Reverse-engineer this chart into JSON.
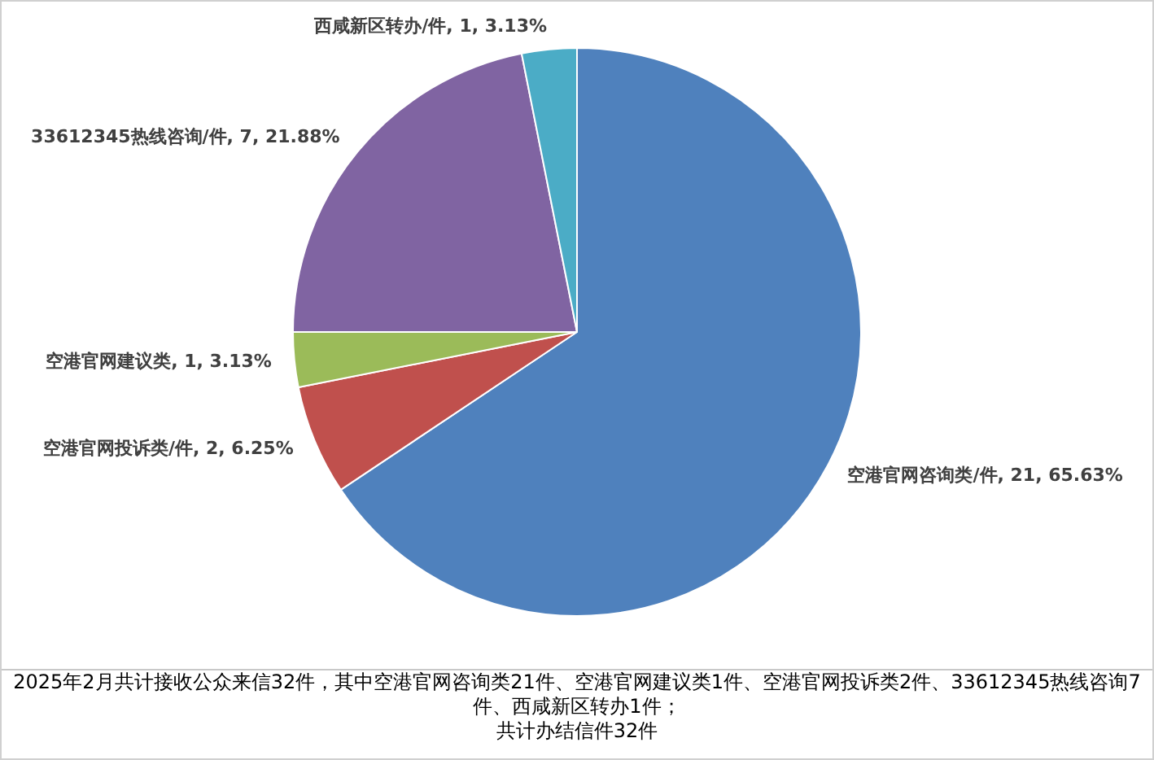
{
  "chart_data": {
    "type": "pie",
    "categories": [
      "空港官网咨询类/件",
      "空港官网投诉类/件",
      "空港官网建议类",
      "33612345热线咨询/件",
      "西咸新区转办/件"
    ],
    "values": [
      21,
      2,
      1,
      7,
      1
    ],
    "value_labels": [
      "21, 65.63%",
      "2, 6.25%",
      "1, 3.13%",
      "7, 21.88%",
      "1, 3.13%"
    ],
    "colors": [
      "#4f81bd",
      "#c0504d",
      "#9bbb59",
      "#8064a2",
      "#4bacc6"
    ],
    "legend": false,
    "annotations": [
      "2025年2月共计接收公众来信32件，其中空港官网咨询类21件、空港官网建议类1件、空港官网投诉类2件、33612345热线咨询7件、西咸新区转办1件；",
      "共计办结信件32件"
    ]
  }
}
